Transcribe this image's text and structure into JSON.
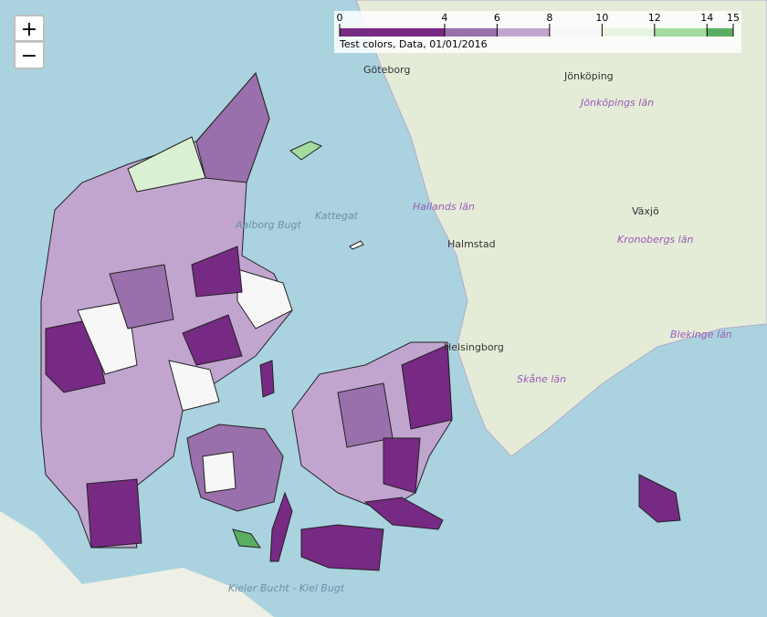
{
  "controls": {
    "zoom_in": "+",
    "zoom_out": "−"
  },
  "legend": {
    "title": "Test colors, Data, 01/01/2016",
    "lim": [
      0,
      15
    ],
    "ticks": [
      0,
      4,
      6,
      8,
      10,
      12,
      14,
      15
    ],
    "colors": [
      "#762a83",
      "#9970ab",
      "#c2a5cf",
      "#f7f7f7",
      "#e7f5e0",
      "#a6dba0",
      "#5aae61"
    ]
  },
  "labels": [
    "Göteborg",
    "Jönköping",
    "Jönköpings län",
    "Hallands län",
    "Kattegat",
    "Aalborg Bugt",
    "Halmstad",
    "Växjö",
    "Kronobergs län",
    "Helsingborg",
    "Blekinge län",
    "Skåne län",
    "Kieler Bucht - Kiel Bugt"
  ]
}
